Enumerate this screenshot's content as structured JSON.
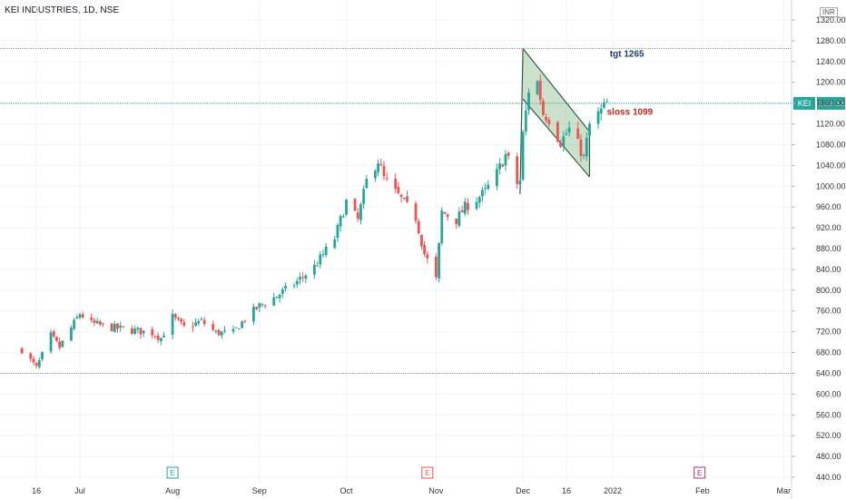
{
  "header": {
    "title": "KEI INDUSTRIES, 1D, NSE",
    "currency": "INR"
  },
  "colors": {
    "up": "#26a69a",
    "down": "#ef5350",
    "channel_fill": "#8fbc8f",
    "channel_line": "#2f5f3f",
    "target_text": "#1b3b6f",
    "stop_text": "#c62828",
    "level_line": "#9a9a9a",
    "price_line": "#26a69a"
  },
  "chart_data": {
    "type": "candlestick",
    "ylim": [
      440,
      1330
    ],
    "y_ticks": [
      "440.00",
      "480.00",
      "520.00",
      "560.00",
      "600.00",
      "640.00",
      "680.00",
      "720.00",
      "760.00",
      "800.00",
      "840.00",
      "880.00",
      "920.00",
      "960.00",
      "1000.00",
      "1040.00",
      "1080.00",
      "1120.00",
      "1160.00",
      "1200.00",
      "1240.00",
      "1280.00",
      "1320.00"
    ],
    "x_ticks": [
      "16",
      "Jul",
      "Aug",
      "Sep",
      "Oct",
      "Nov",
      "Dec",
      "16",
      "2022",
      "Feb",
      "Mar"
    ],
    "last_price": {
      "symbol": "KEI",
      "value": "1159.55"
    },
    "levels": [
      1265,
      640
    ],
    "annotations": [
      {
        "text": "tgt 1265",
        "kind": "target"
      },
      {
        "text": "sloss 1099",
        "kind": "stop"
      }
    ],
    "events": [
      {
        "label": "E",
        "kind": "earnings"
      },
      {
        "label": "E",
        "kind": "earnings"
      },
      {
        "label": "E",
        "kind": "upcoming"
      }
    ],
    "anchors": [
      [
        "2021-06-11",
        686
      ],
      [
        "2021-06-16",
        650
      ],
      [
        "2021-06-21",
        712
      ],
      [
        "2021-06-24",
        690
      ],
      [
        "2021-07-01",
        755
      ],
      [
        "2021-07-05",
        736
      ],
      [
        "2021-07-12",
        728
      ],
      [
        "2021-07-20",
        722
      ],
      [
        "2021-07-26",
        718
      ],
      [
        "2021-07-29",
        708
      ],
      [
        "2021-08-02",
        748
      ],
      [
        "2021-08-06",
        728
      ],
      [
        "2021-08-12",
        740
      ],
      [
        "2021-08-17",
        718
      ],
      [
        "2021-08-23",
        718
      ],
      [
        "2021-08-27",
        745
      ],
      [
        "2021-09-01",
        770
      ],
      [
        "2021-09-06",
        785
      ],
      [
        "2021-09-13",
        812
      ],
      [
        "2021-09-20",
        845
      ],
      [
        "2021-09-27",
        900
      ],
      [
        "2021-10-01",
        970
      ],
      [
        "2021-10-05",
        935
      ],
      [
        "2021-10-08",
        1010
      ],
      [
        "2021-10-12",
        1050
      ],
      [
        "2021-10-14",
        1015
      ],
      [
        "2021-10-20",
        975
      ],
      [
        "2021-10-25",
        940
      ],
      [
        "2021-10-28",
        870
      ],
      [
        "2021-11-01",
        820
      ],
      [
        "2021-11-03",
        950
      ],
      [
        "2021-11-08",
        935
      ],
      [
        "2021-11-11",
        960
      ],
      [
        "2021-11-15",
        975
      ],
      [
        "2021-11-18",
        990
      ],
      [
        "2021-11-22",
        1025
      ],
      [
        "2021-11-25",
        1060
      ],
      [
        "2021-11-26",
        1050
      ],
      [
        "2021-11-29",
        1005
      ],
      [
        "2021-11-30",
        1010
      ],
      [
        "2021-12-01",
        1100
      ],
      [
        "2021-12-03",
        1185
      ],
      [
        "2021-12-06",
        1200
      ],
      [
        "2021-12-08",
        1140
      ],
      [
        "2021-12-10",
        1130
      ],
      [
        "2021-12-14",
        1085
      ],
      [
        "2021-12-17",
        1110
      ],
      [
        "2021-12-20",
        1080
      ],
      [
        "2021-12-22",
        1055
      ],
      [
        "2021-12-24",
        1118
      ],
      [
        "2021-12-28",
        1145
      ],
      [
        "2021-12-30",
        1160
      ]
    ]
  }
}
